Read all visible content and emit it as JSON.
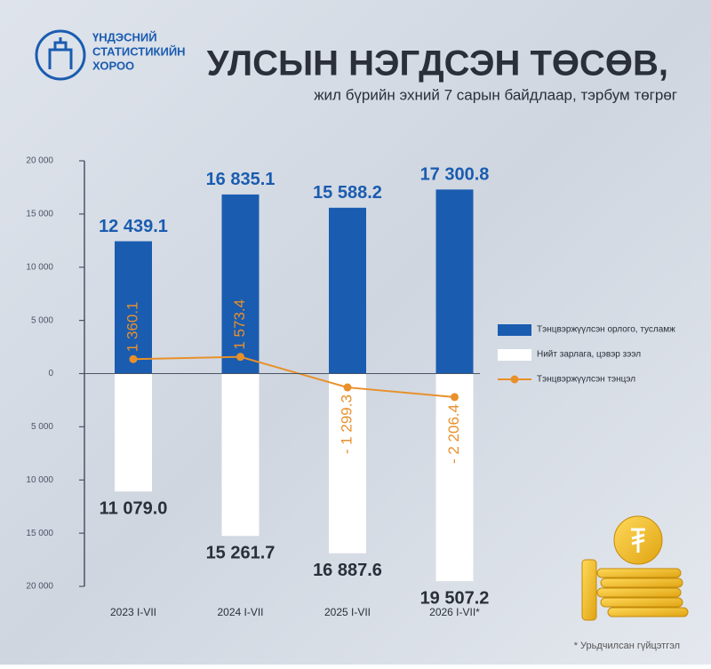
{
  "logo": [
    "ҮНДЭСНИЙ",
    "СТАТИСТИКИЙН",
    "ХОРОО"
  ],
  "chart_data": {
    "type": "bar",
    "title": "УЛСЫН НЭГДСЭН ТӨСӨВ,",
    "subtitle": "жил бүрийн эхний 7 сарын байдлаар, тэрбум төгрөг",
    "note": "* Урьдчилсан гүйцэтгэл",
    "categories": [
      "2023 I-VII",
      "2024 I-VII",
      "2025 I-VII",
      "2026 I-VII*"
    ],
    "series": [
      {
        "name": "Тэнцвэржүүлсэн орлого, тусламж",
        "type": "bar",
        "color": "#1a5cb0",
        "values": [
          12439.1,
          16835.1,
          15588.2,
          17300.8
        ],
        "value_labels": [
          "12 439.1",
          "16 835.1",
          "15 588.2",
          "17 300.8"
        ],
        "label_color": "#1a5cb0"
      },
      {
        "name": "Нийт зарлага, цэвэр зээл",
        "type": "bar",
        "color": "#ffffff",
        "values": [
          -11079.0,
          -15261.7,
          -16887.6,
          -19507.2
        ],
        "value_labels": [
          "11 079.0",
          "15 261.7",
          "16 887.6",
          "19 507.2"
        ],
        "label_color": "#2a2f3a"
      },
      {
        "name": "Тэнцвэржүүлсэн тэнцэл",
        "type": "line",
        "color": "#e8902a",
        "values": [
          1360.1,
          1573.4,
          -1299.3,
          -2206.4
        ],
        "value_labels": [
          "1 360.1",
          "1 573.4",
          "- 1 299.3",
          "- 2 206.4"
        ],
        "label_color": "#e8902a"
      }
    ],
    "ylim": [
      -20000,
      20000
    ],
    "yticks": [
      {
        "value": -20000,
        "label": "20 000"
      },
      {
        "value": -15000,
        "label": "15 000"
      },
      {
        "value": -10000,
        "label": "10 000"
      },
      {
        "value": -5000,
        "label": "5 000"
      },
      0,
      {
        "value": 5000,
        "label": "5 000"
      },
      {
        "value": 10000,
        "label": "10 000"
      },
      {
        "value": 15000,
        "label": "15 000"
      },
      {
        "value": 20000,
        "label": "20 000"
      }
    ],
    "legend": "right"
  }
}
